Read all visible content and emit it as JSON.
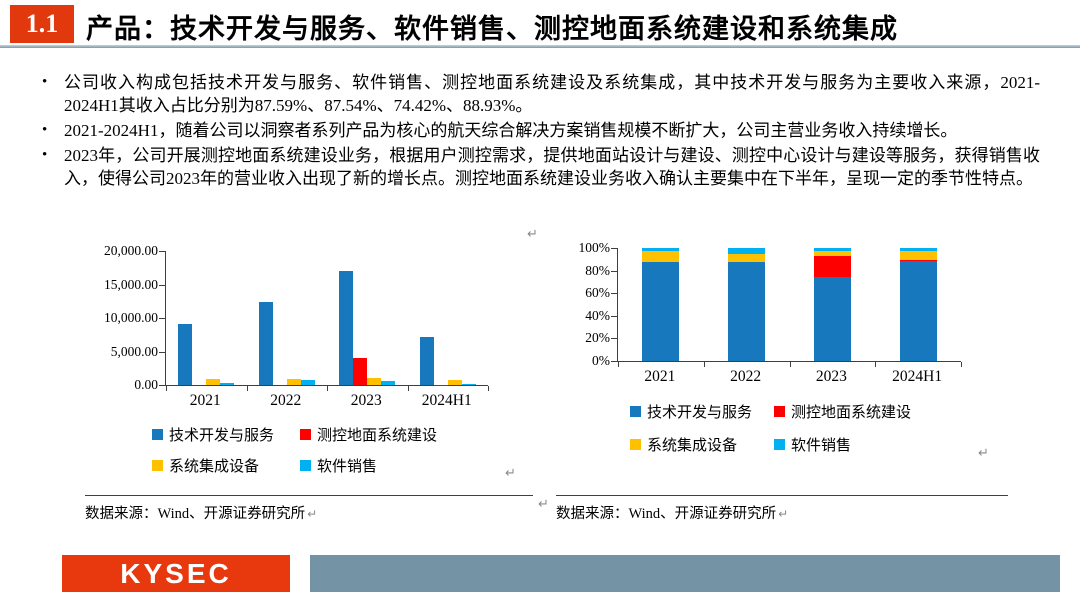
{
  "header": {
    "section_number": "1.1",
    "title": "产品：技术开发与服务、软件销售、测控地面系统建设和系统集成"
  },
  "bullets": [
    {
      "text": "公司收入构成包括技术开发与服务、软件销售、测控地面系统建设及系统集成，其中技术开发与服务为主要收入来源，2021-2024H1其收入占比分别为87.59%、87.54%、74.42%、88.93%。"
    },
    {
      "text": "2021-2024H1，随着公司以洞察者系列产品为核心的航天综合解决方案销售规模不断扩大，公司主营业务收入持续增长。"
    },
    {
      "text": "2023年，公司开展测控地面系统建设业务，根据用户测控需求，提供地面站设计与建设、测控中心设计与建设等服务，获得销售收入，使得公司2023年的营业收入出现了新的增长点。测控地面系统建设业务收入确认主要集中在下半年，呈现一定的季节性特点。"
    }
  ],
  "chart_data": [
    {
      "type": "bar",
      "title": "",
      "categories": [
        "2021",
        "2022",
        "2023",
        "2024H1"
      ],
      "series": [
        {
          "name": "技术开发与服务",
          "color": "#1878BE",
          "values": [
            9100,
            12400,
            17000,
            7200
          ]
        },
        {
          "name": "测控地面系统建设",
          "color": "#FF0000",
          "values": [
            0,
            0,
            4100,
            60
          ]
        },
        {
          "name": "系统集成设备",
          "color": "#FFC000",
          "values": [
            900,
            950,
            1000,
            700
          ]
        },
        {
          "name": "软件销售",
          "color": "#00B0F0",
          "values": [
            250,
            700,
            550,
            120
          ]
        }
      ],
      "xlabel": "",
      "ylabel": "",
      "ylim": [
        0,
        20000
      ],
      "yticks": [
        "20,000.00",
        "15,000.00",
        "10,000.00",
        "5,000.00",
        "0.00"
      ],
      "grid": false,
      "legend_position": "bottom"
    },
    {
      "type": "bar",
      "subtype": "stacked-100-percent",
      "title": "",
      "categories": [
        "2021",
        "2022",
        "2023",
        "2024H1"
      ],
      "series": [
        {
          "name": "技术开发与服务",
          "color": "#1878BE",
          "values": [
            87.59,
            87.54,
            74.42,
            88.93
          ]
        },
        {
          "name": "测控地面系统建设",
          "color": "#FF0000",
          "values": [
            0,
            0,
            18.31,
            0.57
          ]
        },
        {
          "name": "系统集成设备",
          "color": "#FFC000",
          "values": [
            9.5,
            6.9,
            4.27,
            8.0
          ]
        },
        {
          "name": "软件销售",
          "color": "#00B0F0",
          "values": [
            2.91,
            5.56,
            3.0,
            2.5
          ]
        }
      ],
      "xlabel": "",
      "ylabel": "",
      "ylim": [
        0,
        100
      ],
      "yticks": [
        "100%",
        "80%",
        "60%",
        "40%",
        "20%",
        "0%"
      ],
      "grid": false,
      "legend_position": "bottom"
    }
  ],
  "sources": {
    "left": "数据来源：Wind、开源证券研究所",
    "right": "数据来源：Wind、开源证券研究所"
  },
  "footer": {
    "logo_text": "KYSEC"
  },
  "marks": {
    "pilcrow": "↵"
  },
  "colors": {
    "accent_red": "#E2380D",
    "footer_bar": "#7493A4",
    "header_rule": "#8FA5B3"
  }
}
